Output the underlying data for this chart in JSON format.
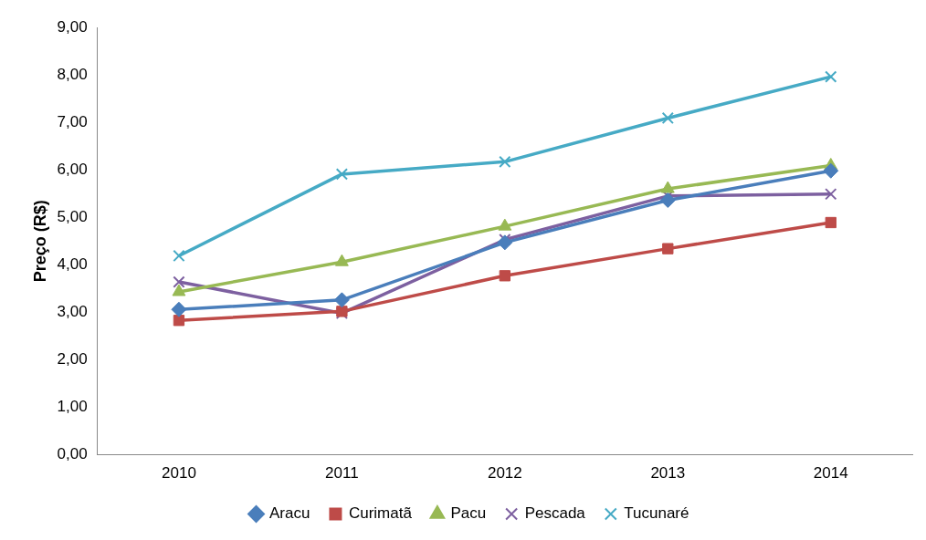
{
  "chart_data": {
    "type": "line",
    "ylabel": "Preço (R$)",
    "categories": [
      "2010",
      "2011",
      "2012",
      "2013",
      "2014"
    ],
    "series": [
      {
        "name": "Aracu",
        "color": "#4a7ebb",
        "marker": "diamond",
        "values": [
          3.06,
          3.26,
          4.47,
          5.36,
          5.98
        ]
      },
      {
        "name": "Curimatã",
        "color": "#be4b48",
        "marker": "square",
        "values": [
          2.83,
          3.02,
          3.77,
          4.34,
          4.89
        ]
      },
      {
        "name": "Pacu",
        "color": "#98b954",
        "marker": "triangle",
        "values": [
          3.43,
          4.06,
          4.81,
          5.6,
          6.09
        ]
      },
      {
        "name": "Pescada",
        "color": "#7d60a0",
        "marker": "cross",
        "values": [
          3.64,
          2.98,
          4.53,
          5.45,
          5.49
        ]
      },
      {
        "name": "Tucunaré",
        "color": "#46aac5",
        "marker": "cross",
        "values": [
          4.19,
          5.91,
          6.17,
          7.09,
          7.96
        ]
      }
    ],
    "ylim": [
      0,
      9
    ],
    "yticks": [
      {
        "value": 0,
        "label": "0,00"
      },
      {
        "value": 1,
        "label": "1,00"
      },
      {
        "value": 2,
        "label": "2,00"
      },
      {
        "value": 3,
        "label": "3,00"
      },
      {
        "value": 4,
        "label": "4,00"
      },
      {
        "value": 5,
        "label": "5,00"
      },
      {
        "value": 6,
        "label": "6,00"
      },
      {
        "value": 7,
        "label": "7,00"
      },
      {
        "value": 8,
        "label": "8,00"
      },
      {
        "value": 9,
        "label": "9,00"
      }
    ],
    "grid": false,
    "legend": "bottom",
    "line_style": "solid"
  }
}
